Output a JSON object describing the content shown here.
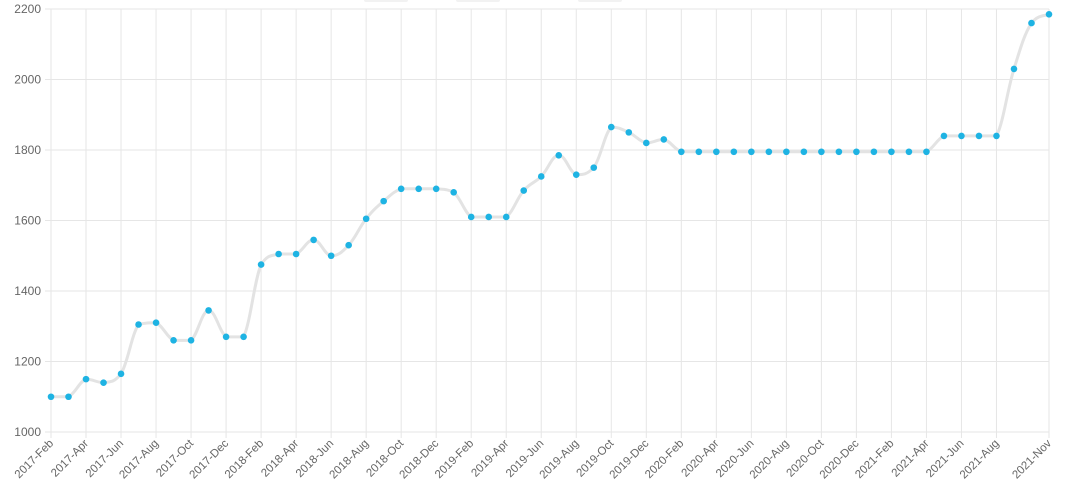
{
  "chart_data": {
    "type": "line",
    "title": "",
    "xlabel": "",
    "ylabel": "",
    "ylim": [
      1000,
      2200
    ],
    "yticks": [
      1000,
      1200,
      1400,
      1600,
      1800,
      2000,
      2200
    ],
    "grid": true,
    "x": [
      "2017-Feb",
      "2017-Mar",
      "2017-Apr",
      "2017-May",
      "2017-Jun",
      "2017-Jul",
      "2017-Aug",
      "2017-Sep",
      "2017-Oct",
      "2017-Nov",
      "2017-Dec",
      "2018-Jan",
      "2018-Feb",
      "2018-Mar",
      "2018-Apr",
      "2018-May",
      "2018-Jun",
      "2018-Jul",
      "2018-Aug",
      "2018-Sep",
      "2018-Oct",
      "2018-Nov",
      "2018-Dec",
      "2019-Jan",
      "2019-Feb",
      "2019-Mar",
      "2019-Apr",
      "2019-May",
      "2019-Jun",
      "2019-Jul",
      "2019-Aug",
      "2019-Sep",
      "2019-Oct",
      "2019-Nov",
      "2019-Dec",
      "2020-Jan",
      "2020-Feb",
      "2020-Mar",
      "2020-Apr",
      "2020-May",
      "2020-Jun",
      "2020-Jul",
      "2020-Aug",
      "2020-Sep",
      "2020-Oct",
      "2020-Nov",
      "2020-Dec",
      "2021-Jan",
      "2021-Feb",
      "2021-Mar",
      "2021-Apr",
      "2021-May",
      "2021-Jun",
      "2021-Jul",
      "2021-Aug",
      "2021-Sep",
      "2021-Oct",
      "2021-Nov"
    ],
    "xtick_labels": [
      "2017-Feb",
      "2017-Apr",
      "2017-Jun",
      "2017-Aug",
      "2017-Oct",
      "2017-Dec",
      "2018-Feb",
      "2018-Apr",
      "2018-Jun",
      "2018-Aug",
      "2018-Oct",
      "2018-Dec",
      "2019-Feb",
      "2019-Apr",
      "2019-Jun",
      "2019-Aug",
      "2019-Oct",
      "2019-Dec",
      "2020-Feb",
      "2020-Apr",
      "2020-Jun",
      "2020-Aug",
      "2020-Oct",
      "2020-Dec",
      "2021-Feb",
      "2021-Apr",
      "2021-Jun",
      "2021-Aug",
      "2021-Nov"
    ],
    "series": [
      {
        "values": [
          1100,
          1100,
          1150,
          1140,
          1165,
          1305,
          1310,
          1260,
          1260,
          1345,
          1270,
          1270,
          1475,
          1505,
          1505,
          1545,
          1500,
          1530,
          1605,
          1655,
          1690,
          1690,
          1690,
          1680,
          1610,
          1610,
          1610,
          1685,
          1725,
          1785,
          1730,
          1750,
          1865,
          1850,
          1820,
          1830,
          1795,
          1795,
          1795,
          1795,
          1795,
          1795,
          1795,
          1795,
          1795,
          1795,
          1795,
          1795,
          1795,
          1795,
          1795,
          1840,
          1840,
          1840,
          1840,
          2030,
          2160,
          2185
        ],
        "line_color": "#e3e3e3",
        "point_color": "#1eb3e3"
      }
    ]
  }
}
